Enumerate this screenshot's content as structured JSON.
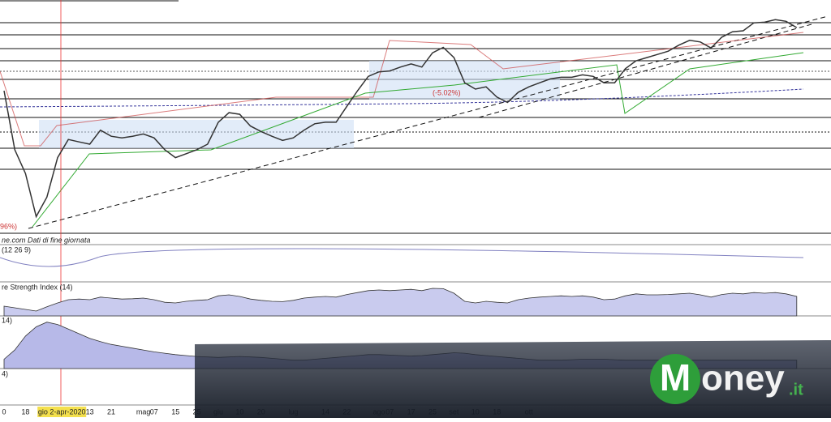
{
  "chart_data": [
    {
      "type": "line",
      "color": "#333333",
      "categories": [
        "0",
        null,
        "18",
        null,
        null,
        null,
        "gio 2-apr-2020",
        null,
        "13",
        null,
        "21",
        null,
        null,
        "mag",
        "07",
        null,
        "15",
        null,
        "25",
        null,
        "giu",
        null,
        "10",
        null,
        "20",
        null,
        null,
        "lug",
        null,
        null,
        "14",
        null,
        "22",
        null,
        null,
        "ago",
        "07",
        null,
        "17",
        null,
        "25",
        null,
        "set",
        null,
        "10",
        null,
        "18",
        null,
        null,
        "ott",
        null,
        null,
        null,
        null,
        null,
        null,
        null,
        null,
        null,
        null,
        null,
        null,
        null,
        null,
        null,
        null,
        null,
        null,
        null,
        null,
        null,
        null,
        null,
        null,
        null
      ],
      "values": [
        61.8,
        35.8,
        25.3,
        6.3,
        14.9,
        32.3,
        40.3,
        39.2,
        38.2,
        44.4,
        41.7,
        41.0,
        41.7,
        42.7,
        41.0,
        35.8,
        32.3,
        34.0,
        35.8,
        38.2,
        47.9,
        52.1,
        51.4,
        46.2,
        43.8,
        41.7,
        39.9,
        41.0,
        44.4,
        47.2,
        47.9,
        47.9,
        54.9,
        61.8,
        68.1,
        70.1,
        70.5,
        72.2,
        73.6,
        72.2,
        78.5,
        80.9,
        76.4,
        65.3,
        62.5,
        63.5,
        59.0,
        56.6,
        61.1,
        63.5,
        65.3,
        67.0,
        67.7,
        67.7,
        68.8,
        68.1,
        65.3,
        65.3,
        71.5,
        75.0,
        76.4,
        77.8,
        79.2,
        81.9,
        84.0,
        83.3,
        80.6,
        85.4,
        87.8,
        88.2,
        91.7,
        92.0,
        93.1,
        92.4,
        89.6
      ],
      "ylim": [
        0,
        100
      ]
    },
    {
      "type": "area",
      "title": "re Strength Index (14)",
      "color": "#c9cbee",
      "values": [
        30,
        25,
        20,
        15,
        28,
        40,
        50,
        52,
        50,
        58,
        55,
        52,
        53,
        55,
        50,
        42,
        40,
        45,
        48,
        50,
        62,
        65,
        60,
        52,
        48,
        45,
        44,
        48,
        55,
        58,
        60,
        58,
        66,
        72,
        78,
        80,
        78,
        80,
        82,
        78,
        85,
        84,
        70,
        45,
        40,
        45,
        42,
        40,
        50,
        55,
        58,
        60,
        62,
        60,
        62,
        58,
        50,
        52,
        62,
        68,
        65,
        65,
        66,
        68,
        70,
        65,
        58,
        66,
        70,
        68,
        72,
        70,
        72,
        68,
        60
      ],
      "ylim": [
        0,
        100
      ]
    },
    {
      "type": "area",
      "title": "14)",
      "color": "#b7b9e8",
      "values": [
        20,
        40,
        70,
        90,
        100,
        95,
        85,
        75,
        65,
        58,
        52,
        48,
        44,
        40,
        36,
        33,
        30,
        28,
        26,
        25,
        24,
        25,
        26,
        25,
        24,
        22,
        20,
        18,
        18,
        20,
        22,
        24,
        26,
        28,
        30,
        30,
        29,
        28,
        27,
        28,
        30,
        32,
        34,
        33,
        30,
        28,
        26,
        24,
        22,
        20,
        18,
        18,
        18,
        19,
        20,
        20,
        20,
        19,
        18,
        18,
        18,
        18,
        18,
        18,
        18,
        18,
        18,
        18,
        18,
        18,
        18,
        18,
        18,
        18,
        18
      ],
      "ylim": [
        0,
        110
      ]
    }
  ],
  "source": "ne.com  Dati di fine giornata",
  "macd_label": "(12 26 9)",
  "bottom_label": "4)",
  "annotations": [
    "(-5.02%)",
    "96%)"
  ],
  "logo": {
    "initial": "M",
    "word": "oney",
    "suffix": ".it"
  }
}
